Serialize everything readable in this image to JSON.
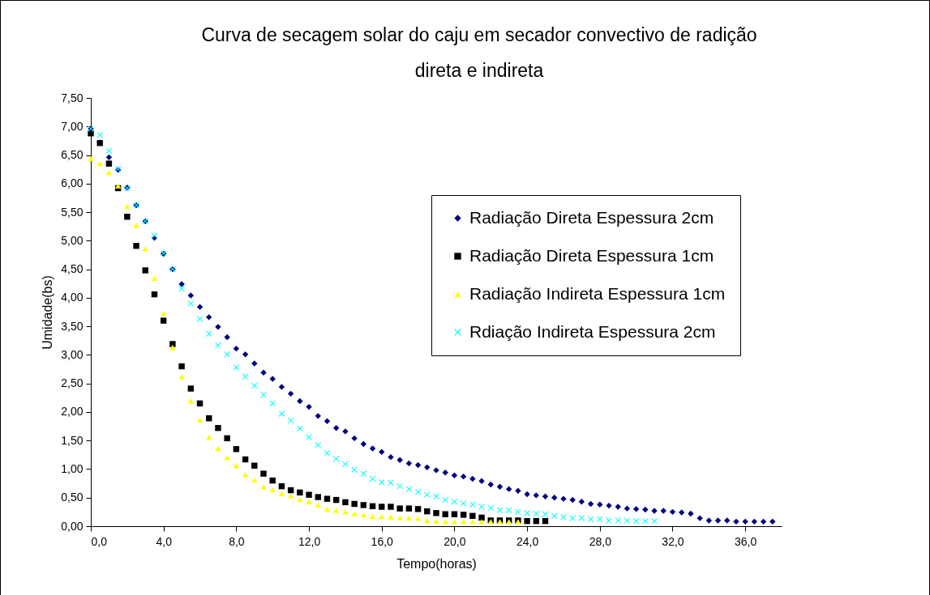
{
  "chart_data": {
    "type": "scatter",
    "title": "Curva de secagem solar do caju em secador convectivo de radição direta e indireta",
    "xlabel": "Tempo(horas)",
    "ylabel": "Umidade(bs)",
    "xlim": [
      0,
      38
    ],
    "xticks": [
      {
        "value": 0,
        "label": "0,0"
      },
      {
        "value": 4,
        "label": "4,0"
      },
      {
        "value": 8,
        "label": "8,0"
      },
      {
        "value": 12,
        "label": "12,0"
      },
      {
        "value": 16,
        "label": "16,0"
      },
      {
        "value": 20,
        "label": "20,0"
      },
      {
        "value": 24,
        "label": "24,0"
      },
      {
        "value": 28,
        "label": "28,0"
      },
      {
        "value": 32,
        "label": "32,0"
      },
      {
        "value": 36,
        "label": "36,0"
      }
    ],
    "ylim": [
      0,
      7.5
    ],
    "yticks": [
      {
        "value": 0,
        "label": "0,00"
      },
      {
        "value": 0.5,
        "label": "0,50"
      },
      {
        "value": 1,
        "label": "1,00"
      },
      {
        "value": 1.5,
        "label": "1,50"
      },
      {
        "value": 2,
        "label": "2,00"
      },
      {
        "value": 2.5,
        "label": "2,50"
      },
      {
        "value": 3,
        "label": "3,00"
      },
      {
        "value": 3.5,
        "label": "3,50"
      },
      {
        "value": 4,
        "label": "4,00"
      },
      {
        "value": 4.5,
        "label": "4,50"
      },
      {
        "value": 5,
        "label": "5,00"
      },
      {
        "value": 5.5,
        "label": "5,50"
      },
      {
        "value": 6,
        "label": "6,00"
      },
      {
        "value": 6.5,
        "label": "6,50"
      },
      {
        "value": 7,
        "label": "7,00"
      },
      {
        "value": 7.5,
        "label": "7,50"
      }
    ],
    "grid": false,
    "legend": "right",
    "series": [
      {
        "name": "Radiação Direta Espessura 2cm",
        "color": "#000080",
        "marker": "diamond",
        "x": [
          0,
          0.5,
          1,
          1.5,
          2,
          2.5,
          3,
          3.5,
          4,
          4.5,
          5,
          5.5,
          6,
          6.5,
          7,
          7.5,
          8,
          8.5,
          9,
          9.5,
          10,
          10.5,
          11,
          11.5,
          12,
          12.5,
          13,
          13.5,
          14,
          14.5,
          15,
          15.5,
          16,
          16.5,
          17,
          17.5,
          18,
          18.5,
          19,
          19.5,
          20,
          20.5,
          21,
          21.5,
          22,
          22.5,
          23,
          23.5,
          24,
          24.5,
          25,
          25.5,
          26,
          26.5,
          27,
          27.5,
          28,
          28.5,
          29,
          29.5,
          30,
          30.5,
          31,
          31.5,
          32,
          32.5,
          33,
          33.5,
          34,
          34.5,
          35,
          35.5,
          36,
          36.5,
          37,
          37.5
        ],
        "values": [
          6.96,
          6.72,
          6.46,
          6.24,
          5.93,
          5.62,
          5.34,
          5.05,
          4.77,
          4.5,
          4.24,
          4.04,
          3.84,
          3.66,
          3.49,
          3.31,
          3.11,
          3.01,
          2.85,
          2.69,
          2.58,
          2.44,
          2.32,
          2.19,
          2.09,
          1.93,
          1.84,
          1.72,
          1.66,
          1.54,
          1.44,
          1.36,
          1.3,
          1.21,
          1.16,
          1.1,
          1.07,
          1.03,
          0.98,
          0.94,
          0.89,
          0.87,
          0.83,
          0.79,
          0.73,
          0.69,
          0.65,
          0.62,
          0.56,
          0.54,
          0.52,
          0.5,
          0.48,
          0.46,
          0.43,
          0.39,
          0.38,
          0.36,
          0.34,
          0.31,
          0.3,
          0.29,
          0.27,
          0.27,
          0.25,
          0.24,
          0.22,
          0.14,
          0.1,
          0.1,
          0.1,
          0.08,
          0.08,
          0.08,
          0.08,
          0.08
        ]
      },
      {
        "name": "Radiação Direta Espessura 1cm",
        "color": "#000000",
        "marker": "square",
        "x": [
          0,
          0.5,
          1,
          1.5,
          2,
          2.5,
          3,
          3.5,
          4,
          4.5,
          5,
          5.5,
          6,
          6.5,
          7,
          7.5,
          8,
          8.5,
          9,
          9.5,
          10,
          10.5,
          11,
          11.5,
          12,
          12.5,
          13,
          13.5,
          14,
          14.5,
          15,
          15.5,
          16,
          16.5,
          17,
          17.5,
          18,
          18.5,
          19,
          19.5,
          20,
          20.5,
          21,
          21.5,
          22,
          22.5,
          23,
          23.5,
          24,
          24.5,
          25
        ],
        "values": [
          6.88,
          6.71,
          6.35,
          5.92,
          5.42,
          4.91,
          4.48,
          4.06,
          3.6,
          3.19,
          2.8,
          2.41,
          2.15,
          1.89,
          1.72,
          1.54,
          1.35,
          1.17,
          1.06,
          0.92,
          0.8,
          0.7,
          0.63,
          0.59,
          0.55,
          0.51,
          0.48,
          0.46,
          0.42,
          0.39,
          0.37,
          0.35,
          0.34,
          0.34,
          0.31,
          0.31,
          0.3,
          0.26,
          0.23,
          0.21,
          0.21,
          0.2,
          0.18,
          0.15,
          0.1,
          0.1,
          0.1,
          0.1,
          0.09,
          0.09,
          0.09
        ]
      },
      {
        "name": "Radiação Indireta Espessura 1cm",
        "color": "#ffff00",
        "marker": "triangle",
        "x": [
          0,
          0.5,
          1,
          1.5,
          2,
          2.5,
          3,
          3.5,
          4,
          4.5,
          5,
          5.5,
          6,
          6.5,
          7,
          7.5,
          8,
          8.5,
          9,
          9.5,
          10,
          10.5,
          11,
          11.5,
          12,
          12.5,
          13,
          13.5,
          14,
          14.5,
          15,
          15.5,
          16,
          16.5,
          17,
          17.5,
          18,
          18.5,
          19,
          19.5,
          20,
          20.5,
          21,
          21.5,
          22,
          22.5,
          23,
          23.5
        ],
        "values": [
          6.44,
          6.35,
          6.19,
          5.96,
          5.6,
          5.27,
          4.86,
          4.34,
          3.73,
          3.13,
          2.62,
          2.19,
          1.86,
          1.56,
          1.36,
          1.2,
          1.06,
          0.9,
          0.81,
          0.69,
          0.64,
          0.57,
          0.53,
          0.47,
          0.43,
          0.37,
          0.3,
          0.28,
          0.25,
          0.22,
          0.2,
          0.17,
          0.17,
          0.16,
          0.15,
          0.14,
          0.14,
          0.1,
          0.09,
          0.08,
          0.08,
          0.08,
          0.08,
          0.08,
          0.08,
          0.08,
          0.08,
          0.08
        ]
      },
      {
        "name": "Rdiação Indireta Espessura 2cm",
        "color": "#00ffff",
        "marker": "cross",
        "x": [
          0,
          0.5,
          1,
          1.5,
          2,
          2.5,
          3,
          3.5,
          4,
          4.5,
          5,
          5.5,
          6,
          6.5,
          7,
          7.5,
          8,
          8.5,
          9,
          9.5,
          10,
          10.5,
          11,
          11.5,
          12,
          12.5,
          13,
          13.5,
          14,
          14.5,
          15,
          15.5,
          16,
          16.5,
          17,
          17.5,
          18,
          18.5,
          19,
          19.5,
          20,
          20.5,
          21,
          21.5,
          22,
          22.5,
          23,
          23.5,
          24,
          24.5,
          25,
          25.5,
          26,
          26.5,
          27,
          27.5,
          28,
          28.5,
          29,
          29.5,
          30,
          30.5,
          31
        ],
        "values": [
          6.96,
          6.85,
          6.57,
          6.26,
          5.92,
          5.62,
          5.34,
          5.09,
          4.78,
          4.5,
          4.16,
          3.9,
          3.63,
          3.37,
          3.17,
          3.01,
          2.78,
          2.62,
          2.46,
          2.3,
          2.15,
          1.97,
          1.85,
          1.71,
          1.56,
          1.42,
          1.28,
          1.18,
          1.09,
          0.99,
          0.92,
          0.83,
          0.77,
          0.76,
          0.7,
          0.65,
          0.6,
          0.55,
          0.52,
          0.46,
          0.43,
          0.4,
          0.38,
          0.34,
          0.32,
          0.28,
          0.28,
          0.25,
          0.23,
          0.22,
          0.21,
          0.18,
          0.16,
          0.14,
          0.14,
          0.12,
          0.12,
          0.1,
          0.1,
          0.1,
          0.09,
          0.09,
          0.09
        ]
      }
    ]
  }
}
